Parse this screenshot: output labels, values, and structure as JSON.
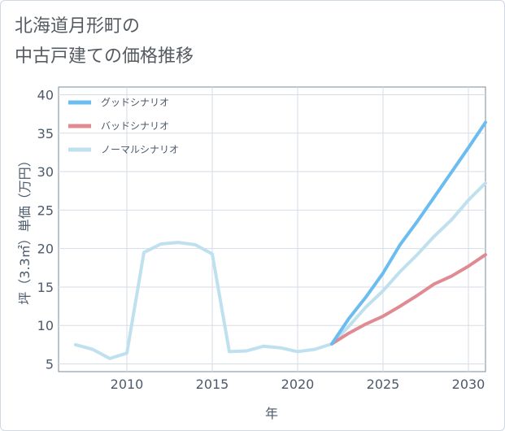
{
  "title": "北海道月形町の\n中古戸建ての価格推移",
  "chart_data": {
    "type": "line",
    "xlabel": "年",
    "ylabel": "坪（3.3㎡）単価（万円）",
    "xlim": [
      2006,
      2031
    ],
    "ylim": [
      4,
      41
    ],
    "xticks": [
      2010,
      2015,
      2020,
      2025,
      2030
    ],
    "yticks": [
      5,
      10,
      15,
      20,
      25,
      30,
      35,
      40
    ],
    "legend_position": "top-left",
    "grid": true,
    "series": [
      {
        "name": "グッドシナリオ",
        "color": "#6bbcf0",
        "x": [
          2022,
          2023,
          2024,
          2025,
          2026,
          2027,
          2028,
          2029,
          2030,
          2031
        ],
        "y": [
          7.6,
          10.9,
          13.7,
          16.8,
          20.5,
          23.5,
          26.7,
          29.9,
          33.1,
          36.4
        ]
      },
      {
        "name": "バッドシナリオ",
        "color": "#e08a91",
        "x": [
          2022,
          2023,
          2024,
          2025,
          2026,
          2027,
          2028,
          2029,
          2030,
          2031
        ],
        "y": [
          7.6,
          9.0,
          10.2,
          11.2,
          12.5,
          13.9,
          15.4,
          16.4,
          17.7,
          19.2
        ]
      },
      {
        "name": "ノーマルシナリオ",
        "color": "#bfe0ee",
        "x": [
          2007,
          2008,
          2009,
          2010,
          2011,
          2012,
          2013,
          2014,
          2015,
          2016,
          2017,
          2018,
          2019,
          2020,
          2021,
          2022,
          2023,
          2024,
          2025,
          2026,
          2027,
          2028,
          2029,
          2030,
          2031
        ],
        "y": [
          7.5,
          6.9,
          5.7,
          6.4,
          19.5,
          20.6,
          20.8,
          20.5,
          19.3,
          6.6,
          6.7,
          7.3,
          7.1,
          6.6,
          6.9,
          7.6,
          9.9,
          12.4,
          14.5,
          17.0,
          19.2,
          21.6,
          23.7,
          26.3,
          28.5
        ]
      }
    ]
  }
}
